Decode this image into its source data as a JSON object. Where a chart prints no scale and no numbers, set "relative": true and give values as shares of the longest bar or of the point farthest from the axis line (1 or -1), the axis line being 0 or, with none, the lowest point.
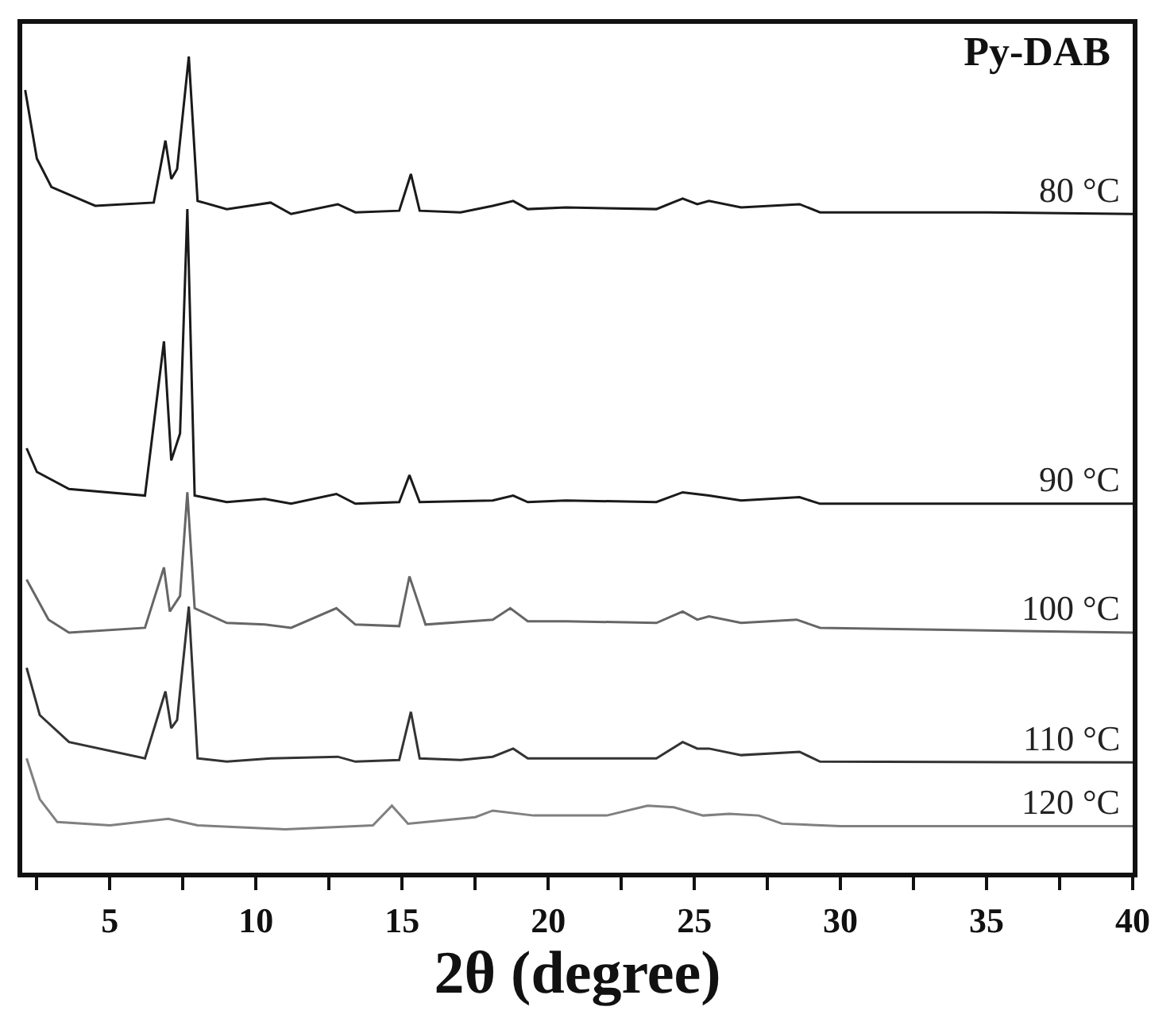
{
  "chart_data": {
    "type": "line",
    "title": "Py-DAB",
    "xlabel": "2θ (degree)",
    "relative": true,
    "legend": false,
    "tick_labels": "x",
    "xlim": [
      2,
      40
    ],
    "xticks": [
      {
        "value": 2.5,
        "label": null
      },
      5,
      {
        "value": 7.5,
        "label": null
      },
      10,
      {
        "value": 12.5,
        "label": null
      },
      15,
      {
        "value": 17.5,
        "label": null
      },
      20,
      {
        "value": 22.5,
        "label": null
      },
      25,
      {
        "value": 27.5,
        "label": null
      },
      30,
      {
        "value": 32.5,
        "label": null
      },
      35,
      {
        "value": 37.5,
        "label": null
      },
      40
    ],
    "series": [
      {
        "name": "80 °C",
        "color": "#1a1a1a",
        "x": [
          2.1,
          2.5,
          3.0,
          4.5,
          6.5,
          6.9,
          7.1,
          7.3,
          7.7,
          8.0,
          9.0,
          10.5,
          11.2,
          12.8,
          13.4,
          14.9,
          15.3,
          15.6,
          17.0,
          18.1,
          18.8,
          19.3,
          20.6,
          23.7,
          24.6,
          25.1,
          25.5,
          26.6,
          28.6,
          29.3,
          35,
          40
        ],
        "values": [
          0.959,
          0.875,
          0.84,
          0.817,
          0.821,
          0.897,
          0.85,
          0.862,
          1.0,
          0.823,
          0.813,
          0.821,
          0.807,
          0.819,
          0.809,
          0.811,
          0.856,
          0.811,
          0.809,
          0.817,
          0.823,
          0.813,
          0.815,
          0.813,
          0.826,
          0.819,
          0.823,
          0.815,
          0.819,
          0.809,
          0.809,
          0.807
        ]
      },
      {
        "name": "90 °C",
        "color": "#1a1a1a",
        "x": [
          2.15,
          2.5,
          3.6,
          6.2,
          6.85,
          7.1,
          7.4,
          7.65,
          7.9,
          9.0,
          10.3,
          11.2,
          12.75,
          13.4,
          14.9,
          15.25,
          15.6,
          18.1,
          18.8,
          19.3,
          20.6,
          23.7,
          24.6,
          25.5,
          26.6,
          28.6,
          29.3,
          40
        ],
        "values": [
          0.52,
          0.491,
          0.47,
          0.462,
          0.651,
          0.505,
          0.538,
          0.813,
          0.462,
          0.454,
          0.458,
          0.452,
          0.464,
          0.452,
          0.454,
          0.487,
          0.454,
          0.456,
          0.462,
          0.454,
          0.456,
          0.454,
          0.466,
          0.462,
          0.456,
          0.46,
          0.452,
          0.452
        ]
      },
      {
        "name": "100 °C",
        "color": "#666666",
        "x": [
          2.15,
          2.9,
          3.6,
          6.2,
          6.85,
          7.05,
          7.4,
          7.65,
          7.9,
          9.0,
          10.3,
          11.2,
          12.75,
          13.4,
          14.9,
          15.25,
          15.8,
          18.1,
          18.7,
          19.3,
          20.6,
          23.7,
          24.6,
          25.1,
          25.5,
          26.6,
          28.5,
          29.3,
          40
        ],
        "values": [
          0.359,
          0.31,
          0.294,
          0.3,
          0.374,
          0.32,
          0.339,
          0.466,
          0.324,
          0.306,
          0.304,
          0.3,
          0.324,
          0.304,
          0.302,
          0.363,
          0.304,
          0.31,
          0.324,
          0.308,
          0.308,
          0.306,
          0.32,
          0.31,
          0.314,
          0.306,
          0.31,
          0.3,
          0.294
        ]
      },
      {
        "name": "110 °C",
        "color": "#333333",
        "x": [
          2.15,
          2.6,
          3.6,
          6.2,
          6.9,
          7.1,
          7.3,
          7.7,
          8.0,
          9.0,
          10.5,
          12.8,
          13.4,
          14.9,
          15.3,
          15.6,
          17.0,
          18.1,
          18.8,
          19.3,
          23.7,
          24.6,
          25.1,
          25.5,
          26.6,
          28.6,
          29.3,
          40
        ],
        "values": [
          0.251,
          0.193,
          0.16,
          0.14,
          0.222,
          0.177,
          0.187,
          0.326,
          0.14,
          0.136,
          0.14,
          0.142,
          0.136,
          0.138,
          0.197,
          0.14,
          0.138,
          0.142,
          0.152,
          0.14,
          0.14,
          0.16,
          0.152,
          0.152,
          0.144,
          0.148,
          0.136,
          0.135
        ]
      },
      {
        "name": "120 °C",
        "color": "#808080",
        "x": [
          2.15,
          2.6,
          3.2,
          5.0,
          7.0,
          8.0,
          11.0,
          14.0,
          14.65,
          15.2,
          17.5,
          18.1,
          19.5,
          22.0,
          23.4,
          24.3,
          25.3,
          26.2,
          27.2,
          28.0,
          30.0,
          40
        ],
        "values": [
          0.14,
          0.09,
          0.062,
          0.058,
          0.066,
          0.058,
          0.053,
          0.058,
          0.082,
          0.06,
          0.068,
          0.076,
          0.07,
          0.07,
          0.082,
          0.08,
          0.07,
          0.072,
          0.07,
          0.06,
          0.057,
          0.057
        ]
      }
    ]
  }
}
